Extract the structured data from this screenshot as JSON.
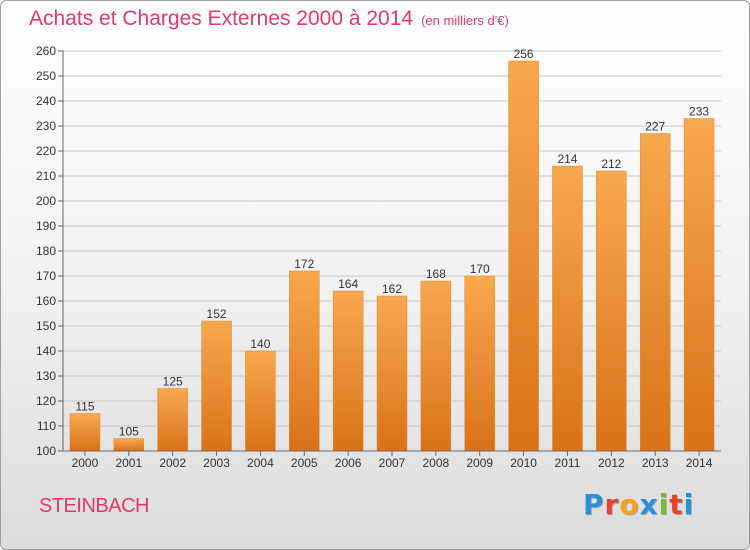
{
  "header": {
    "title": "Achats et Charges Externes 2000 à 2014",
    "unit": "(en milliers d'€)"
  },
  "footer": {
    "city": "STEINBACH",
    "logo": "Proxiti",
    "logo_colors": [
      "#2a8fd6",
      "#e8402e",
      "#f6a21b",
      "#2a8fd6",
      "#7cb82f",
      "#e8402e",
      "#2a8fd6"
    ]
  },
  "colors": {
    "bar_top": "#f8a84e",
    "bar_bottom": "#d9721a",
    "title": "#e03a6a"
  },
  "chart_data": {
    "type": "bar",
    "title": "Achats et Charges Externes 2000 à 2014",
    "subtitle": "(en milliers d'€)",
    "categories": [
      "2000",
      "2001",
      "2002",
      "2003",
      "2004",
      "2005",
      "2006",
      "2007",
      "2008",
      "2009",
      "2010",
      "2011",
      "2012",
      "2013",
      "2014"
    ],
    "values": [
      115,
      105,
      125,
      152,
      140,
      172,
      164,
      162,
      168,
      170,
      256,
      214,
      212,
      227,
      233
    ],
    "ylim": [
      100,
      260
    ],
    "yticks": [
      100,
      110,
      120,
      130,
      140,
      150,
      160,
      170,
      180,
      190,
      200,
      210,
      220,
      230,
      240,
      250,
      260
    ],
    "grid": true,
    "data_labels": true
  }
}
